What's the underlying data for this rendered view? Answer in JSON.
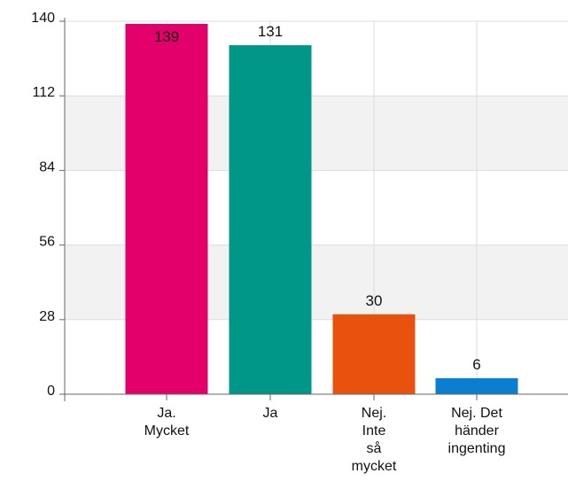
{
  "chart_data": {
    "type": "bar",
    "categories": [
      [
        "Ja.",
        "Mycket"
      ],
      [
        "Ja"
      ],
      [
        "Nej.",
        "Inte",
        "så",
        "mycket"
      ],
      [
        "Nej. Det",
        "händer",
        "ingenting"
      ]
    ],
    "values": [
      139,
      131,
      30,
      6
    ],
    "colors": [
      "#e3006b",
      "#009688",
      "#e8520e",
      "#0a7fd1"
    ],
    "ylim": [
      0,
      140
    ],
    "yticks": [
      0,
      28,
      56,
      84,
      112,
      140
    ],
    "title": "",
    "xlabel": "",
    "ylabel": "",
    "grid": true,
    "band_color": "#f2f2f2",
    "grid_color": "#dddddd"
  }
}
